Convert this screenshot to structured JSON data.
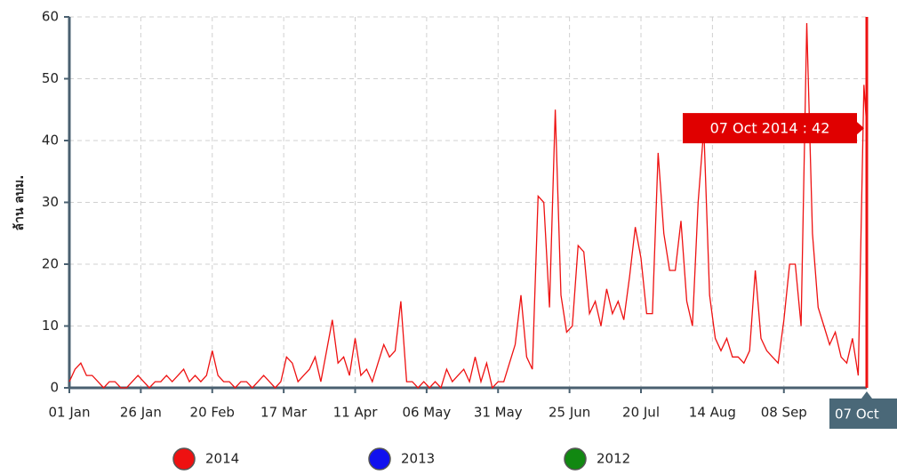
{
  "chart_data": {
    "type": "line",
    "y_label": "ล้าน ลบม.",
    "x": [
      1,
      3,
      5,
      7,
      9,
      11,
      13,
      15,
      17,
      19,
      21,
      23,
      25,
      27,
      29,
      31,
      33,
      35,
      37,
      39,
      41,
      43,
      45,
      47,
      49,
      51,
      53,
      55,
      57,
      59,
      61,
      63,
      65,
      67,
      69,
      71,
      73,
      75,
      77,
      79,
      81,
      83,
      85,
      87,
      89,
      91,
      93,
      95,
      97,
      99,
      101,
      103,
      105,
      107,
      109,
      111,
      113,
      115,
      117,
      119,
      121,
      123,
      125,
      127,
      129,
      131,
      133,
      135,
      137,
      139,
      141,
      143,
      145,
      147,
      149,
      151,
      153,
      155,
      157,
      159,
      161,
      163,
      165,
      167,
      169,
      171,
      173,
      175,
      177,
      179,
      181,
      183,
      185,
      187,
      189,
      191,
      193,
      195,
      197,
      199,
      201,
      203,
      205,
      207,
      209,
      211,
      213,
      215,
      217,
      219,
      221,
      223,
      225,
      227,
      229,
      231,
      233,
      235,
      237,
      239,
      241,
      243,
      245,
      247,
      249,
      251,
      253,
      255,
      257,
      259,
      261,
      263,
      265,
      267,
      269,
      271,
      273,
      275,
      277,
      279,
      280
    ],
    "series": [
      {
        "name": "2014",
        "color": "#ee1111",
        "values": [
          1,
          3,
          4,
          2,
          2,
          1,
          0,
          1,
          1,
          0,
          0,
          1,
          2,
          1,
          0,
          1,
          1,
          2,
          1,
          2,
          3,
          1,
          2,
          1,
          2,
          6,
          2,
          1,
          1,
          0,
          1,
          1,
          0,
          1,
          2,
          1,
          0,
          1,
          5,
          4,
          1,
          2,
          3,
          5,
          1,
          6,
          11,
          4,
          5,
          2,
          8,
          2,
          3,
          1,
          4,
          7,
          5,
          6,
          14,
          1,
          1,
          0,
          1,
          0,
          1,
          0,
          3,
          1,
          2,
          3,
          1,
          5,
          1,
          4,
          0,
          1,
          1,
          4,
          7,
          15,
          5,
          3,
          31,
          30,
          13,
          45,
          15,
          9,
          10,
          23,
          22,
          12,
          14,
          10,
          16,
          12,
          14,
          11,
          18,
          26,
          21,
          12,
          12,
          38,
          25,
          19,
          19,
          27,
          14,
          10,
          30,
          42,
          15,
          8,
          6,
          8,
          5,
          5,
          4,
          6,
          19,
          8,
          6,
          5,
          4,
          11,
          20,
          20,
          10,
          59,
          25,
          13,
          10,
          7,
          9,
          5,
          4,
          8,
          2,
          49,
          42
        ]
      }
    ],
    "legend_items": [
      {
        "name": "2013",
        "color": "#1111ee"
      },
      {
        "name": "2012",
        "color": "#118811"
      }
    ],
    "xlim": [
      1,
      280
    ],
    "xticks": [
      {
        "value": 1,
        "label": "01 Jan"
      },
      {
        "value": 26,
        "label": "26 Jan"
      },
      {
        "value": 51,
        "label": "20 Feb"
      },
      {
        "value": 76,
        "label": "17 Mar"
      },
      {
        "value": 101,
        "label": "11 Apr"
      },
      {
        "value": 126,
        "label": "06 May"
      },
      {
        "value": 151,
        "label": "31 May"
      },
      {
        "value": 176,
        "label": "25 Jun"
      },
      {
        "value": 201,
        "label": "20 Jul"
      },
      {
        "value": 226,
        "label": "14 Aug"
      },
      {
        "value": 251,
        "label": "08 Sep"
      }
    ],
    "ylim": [
      0,
      60
    ],
    "yticks": [
      0,
      10,
      20,
      30,
      40,
      50,
      60
    ],
    "grid": true,
    "crosshair": {
      "x": 280,
      "label": "07 Oct",
      "tooltip": "07 Oct 2014 : 42"
    }
  }
}
